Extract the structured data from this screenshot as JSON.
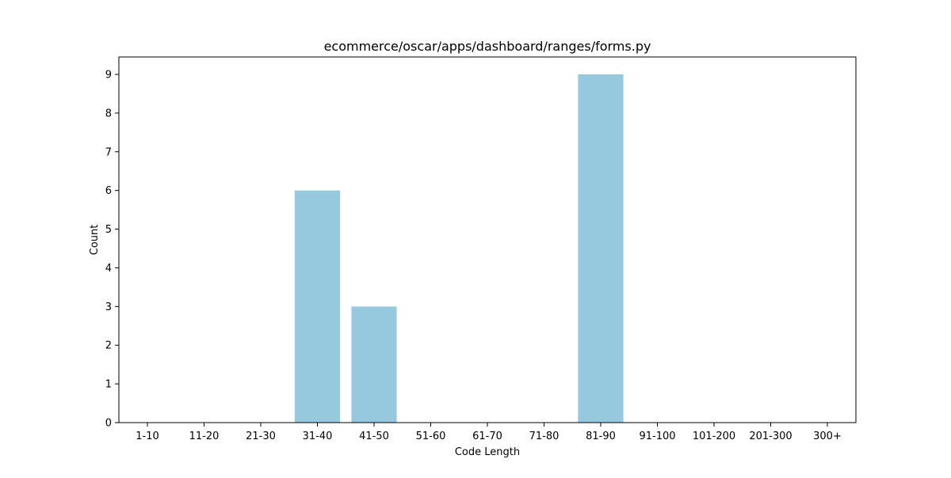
{
  "chart_data": {
    "type": "bar",
    "title": "ecommerce/oscar/apps/dashboard/ranges/forms.py",
    "xlabel": "Code Length",
    "ylabel": "Count",
    "categories": [
      "1-10",
      "11-20",
      "21-30",
      "31-40",
      "41-50",
      "51-60",
      "61-70",
      "71-80",
      "81-90",
      "91-100",
      "101-200",
      "201-300",
      "300+"
    ],
    "values": [
      0,
      0,
      0,
      6,
      3,
      0,
      0,
      0,
      9,
      0,
      0,
      0,
      0
    ],
    "ylim": [
      0,
      9.45
    ],
    "yticks": [
      0,
      1,
      2,
      3,
      4,
      5,
      6,
      7,
      8,
      9
    ],
    "grid": false,
    "bar_color": "#96c9de"
  }
}
